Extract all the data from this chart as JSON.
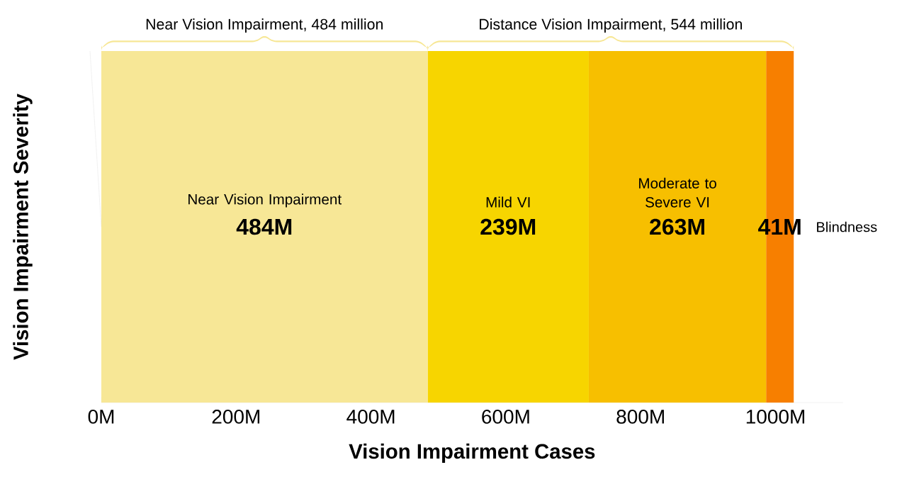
{
  "chart_data": {
    "type": "bar",
    "orientation": "horizontal",
    "stacked": true,
    "categories": [
      null
    ],
    "series": [
      {
        "name": "Near Vision Impairment",
        "color": "#f7e796",
        "values": [
          484
        ],
        "value_labels": [
          "484M"
        ]
      },
      {
        "name": "Mild VI",
        "color": "#f7d500",
        "values": [
          239
        ],
        "value_labels": [
          "239M"
        ]
      },
      {
        "name": "Moderate to Severe VI",
        "color": "#f7bf00",
        "values": [
          263
        ],
        "value_labels": [
          "263M"
        ]
      },
      {
        "name": "Blindness",
        "color": "#f77f00",
        "values": [
          41
        ],
        "value_labels": [
          "41M"
        ]
      }
    ],
    "xlim": [
      0,
      1100
    ],
    "xticks": [
      {
        "value": 0,
        "label": "0M"
      },
      {
        "value": 200,
        "label": "200M"
      },
      {
        "value": 400,
        "label": "400M"
      },
      {
        "value": 600,
        "label": "600M"
      },
      {
        "value": 800,
        "label": "800M"
      },
      {
        "value": 1000,
        "label": "1000M"
      }
    ],
    "xlabel": "Vision Impairment Cases",
    "ylabel": "Vision Impairment Severity",
    "annotations": [
      "Near Vision Impairment, 484 million",
      "Distance Vision Impairment, 544 million"
    ],
    "grid": false
  }
}
